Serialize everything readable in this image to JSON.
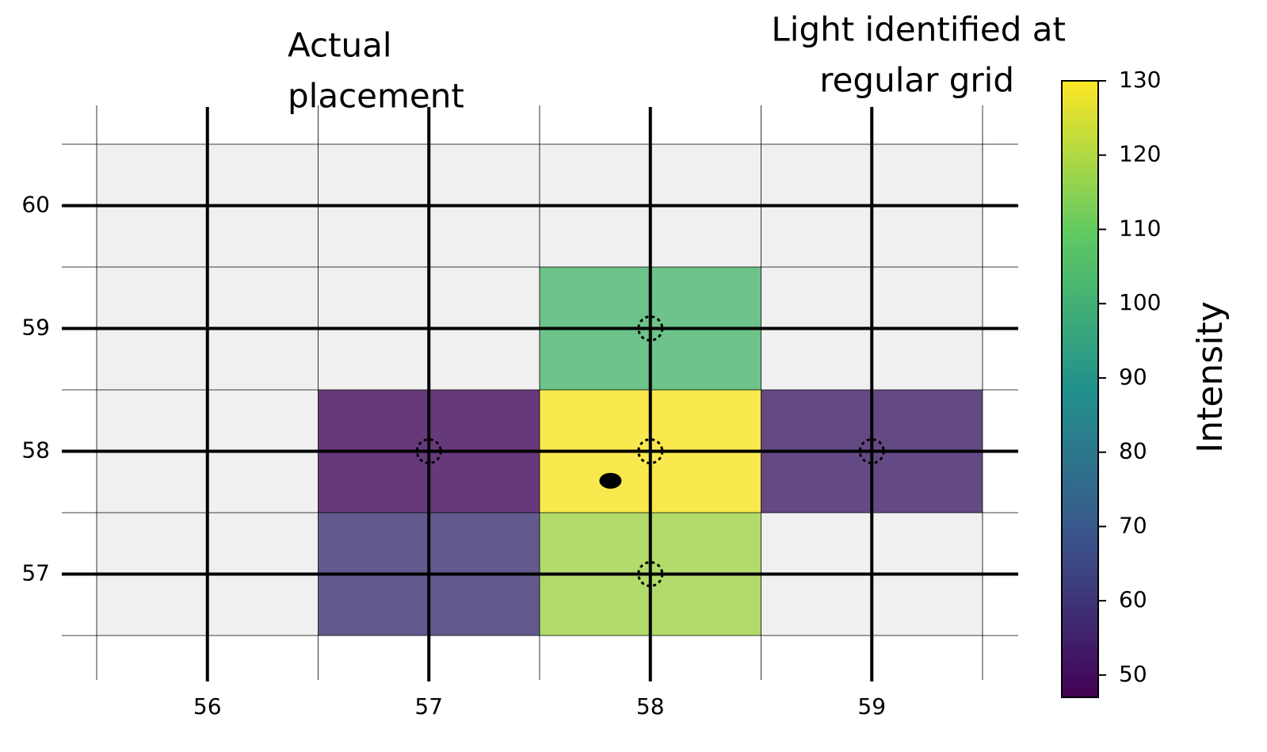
{
  "chart_data": {
    "type": "heatmap",
    "x": [
      58,
      57,
      58,
      59,
      57,
      58
    ],
    "y": [
      59,
      58,
      58,
      58,
      57,
      57
    ],
    "values": [
      103,
      50,
      130,
      55,
      60,
      118
    ],
    "markers": {
      "x": [
        58,
        57,
        58,
        59,
        58
      ],
      "y": [
        59,
        58,
        58,
        58,
        57
      ]
    },
    "actual": {
      "x": 57.82,
      "y": 57.76
    },
    "xlim": [
      55.5,
      59.5
    ],
    "ylim": [
      56.5,
      60.5
    ],
    "xticks": [
      56,
      57,
      58,
      59
    ],
    "yticks": [
      57,
      58,
      59,
      60
    ],
    "clim": [
      47,
      130
    ],
    "cticks": [
      50,
      60,
      70,
      80,
      90,
      100,
      110,
      120,
      130
    ],
    "colorbar_label": "Intensity",
    "colormap": [
      "#440154",
      "#3b528b",
      "#21918c",
      "#5ec962",
      "#fde725"
    ],
    "annotations": [
      {
        "lines": [
          "Actual",
          "placement"
        ]
      },
      {
        "lines": [
          "Light identified at",
          "regular grid"
        ]
      }
    ]
  }
}
